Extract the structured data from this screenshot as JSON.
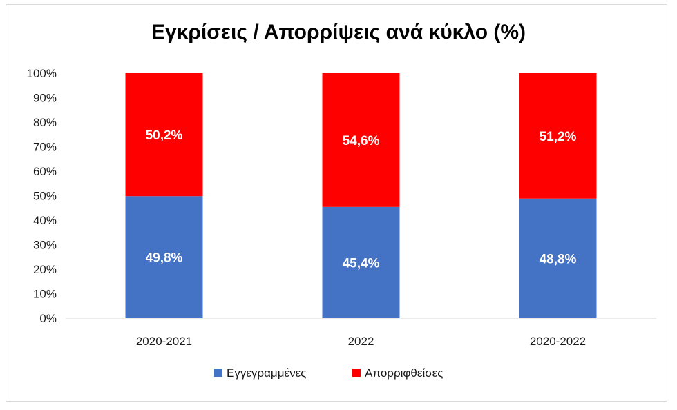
{
  "chart_data": {
    "type": "bar",
    "stacked": true,
    "title": "Εγκρίσεις / Απορρίψεις ανά κύκλο (%)",
    "categories": [
      "2020-2021",
      "2022",
      "2020-2022"
    ],
    "series": [
      {
        "name": "Εγγεγραμμένες",
        "values": [
          49.8,
          45.4,
          48.8
        ],
        "labels": [
          "49,8%",
          "45,4%",
          "48,8%"
        ],
        "color": "#4472c4"
      },
      {
        "name": "Απορριφθείσες",
        "values": [
          50.2,
          54.6,
          51.2
        ],
        "labels": [
          "50,2%",
          "54,6%",
          "51,2%"
        ],
        "color": "#ff0000"
      }
    ],
    "ylim": [
      0,
      100
    ],
    "yticks": [
      "0%",
      "10%",
      "20%",
      "30%",
      "40%",
      "50%",
      "60%",
      "70%",
      "80%",
      "90%",
      "100%"
    ],
    "grid": false,
    "legend": "bottom"
  }
}
